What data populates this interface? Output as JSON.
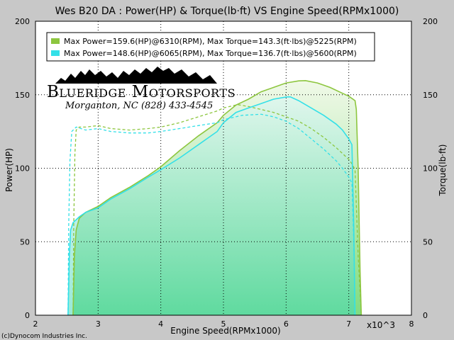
{
  "chart_data": {
    "type": "line",
    "title": "Wes B20 DA : Power(HP) & Torque(lb·ft) VS Engine Speed(RPMx1000)",
    "xlabel": "Engine Speed(RPMx1000)",
    "ylabel_left": "Power(HP)",
    "ylabel_right": "Torque(lb·ft)",
    "x_unit_note": "x10^3",
    "xlim": [
      2,
      8
    ],
    "ylim": [
      0,
      200
    ],
    "x_ticks": [
      "2",
      "3",
      "4",
      "5",
      "6",
      "7",
      "8"
    ],
    "y_ticks_left": [
      "0",
      "50",
      "100",
      "150",
      "200"
    ],
    "y_ticks_right": [
      "0",
      "50",
      "100",
      "150",
      "200"
    ],
    "grid": true,
    "legend_position": "top-left",
    "series": [
      {
        "name": "Max Power=159.6(HP)@6310(RPM), Max Torque=143.3(ft·lbs)@5225(RPM)",
        "color": "#8dc63f",
        "power": {
          "x": [
            2.6,
            2.62,
            2.65,
            2.7,
            2.8,
            3.0,
            3.2,
            3.5,
            3.8,
            4.0,
            4.3,
            4.6,
            4.9,
            5.0,
            5.2,
            5.4,
            5.6,
            5.8,
            6.0,
            6.2,
            6.31,
            6.5,
            6.7,
            6.9,
            7.0,
            7.1,
            7.12,
            7.15,
            7.18,
            7.2
          ],
          "y": [
            0,
            40,
            58,
            66,
            70,
            74,
            80,
            87,
            95,
            101,
            112,
            122,
            131,
            136,
            143,
            147,
            152,
            155,
            158,
            159.4,
            159.6,
            158,
            155,
            151,
            149,
            146,
            140,
            100,
            30,
            0
          ]
        },
        "torque": {
          "x": [
            2.6,
            2.61,
            2.63,
            2.65,
            2.7,
            2.8,
            3.0,
            3.2,
            3.5,
            3.8,
            4.0,
            4.3,
            4.6,
            4.9,
            5.0,
            5.225,
            5.4,
            5.6,
            5.8,
            6.0,
            6.2,
            6.4,
            6.6,
            6.8,
            6.9,
            7.0,
            7.05,
            7.1,
            7.15,
            7.2
          ],
          "y": [
            0,
            60,
            110,
            126,
            128,
            128,
            129,
            127,
            126,
            127,
            128,
            131,
            135,
            139,
            141,
            143.3,
            142,
            140,
            138,
            135,
            132,
            127,
            121,
            114,
            110,
            106,
            103,
            99,
            40,
            0
          ]
        }
      },
      {
        "name": "Max Power=148.6(HP)@6065(RPM), Max Torque=136.7(ft·lbs)@5600(RPM)",
        "color": "#33e0e8",
        "power": {
          "x": [
            2.52,
            2.54,
            2.56,
            2.6,
            2.7,
            2.8,
            3.0,
            3.2,
            3.5,
            3.8,
            4.0,
            4.3,
            4.6,
            4.9,
            5.0,
            5.2,
            5.4,
            5.6,
            5.8,
            6.0,
            6.065,
            6.2,
            6.4,
            6.6,
            6.8,
            6.9,
            7.0,
            7.05,
            7.08,
            7.1
          ],
          "y": [
            0,
            40,
            58,
            63,
            67,
            70,
            73,
            79,
            86,
            94,
            99,
            107,
            116,
            125,
            131,
            138,
            141,
            144,
            147,
            148.5,
            148.6,
            146,
            141,
            136,
            130,
            126,
            120,
            116,
            60,
            0
          ]
        },
        "torque": {
          "x": [
            2.52,
            2.53,
            2.55,
            2.58,
            2.65,
            2.8,
            3.0,
            3.2,
            3.5,
            3.8,
            4.0,
            4.3,
            4.6,
            4.9,
            5.0,
            5.3,
            5.6,
            5.8,
            6.0,
            6.2,
            6.4,
            6.6,
            6.8,
            6.9,
            7.0,
            7.05,
            7.08,
            7.1
          ],
          "y": [
            0,
            60,
            105,
            125,
            128,
            126,
            127,
            125,
            124,
            124,
            125,
            127,
            129,
            131,
            133,
            136,
            136.7,
            135,
            132,
            127,
            120,
            113,
            105,
            100,
            94,
            90,
            50,
            0
          ]
        }
      }
    ]
  },
  "logo": {
    "name": "Blueridge Motorsports",
    "sub": "Morganton, NC (828) 433-4545"
  },
  "copyright": "(c)Dynocom Industries Inc."
}
